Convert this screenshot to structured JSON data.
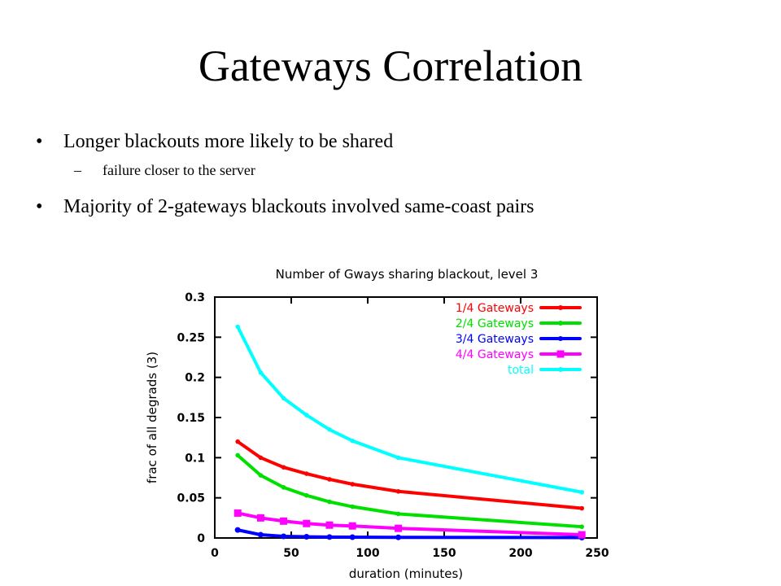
{
  "slide": {
    "title": "Gateways Correlation",
    "bullets": [
      {
        "text": "Longer blackouts more likely to be shared",
        "subbullets": [
          "failure closer to the server"
        ]
      },
      {
        "text": "Majority of 2-gateways blackouts involved same-coast pairs",
        "subbullets": []
      }
    ]
  },
  "chart_data": {
    "type": "line",
    "title": "Number of Gways sharing blackout, level 3",
    "xlabel": "duration (minutes)",
    "ylabel": "frac of all degrads (3)",
    "xlim": [
      0,
      250
    ],
    "ylim": [
      0,
      0.3
    ],
    "xticks": [
      "0",
      "50",
      "100",
      "150",
      "200",
      "250"
    ],
    "yticks": [
      "0",
      "0.05",
      "0.1",
      "0.15",
      "0.2",
      "0.25",
      "0.3"
    ],
    "grid": false,
    "legend_position": "top-right",
    "x": [
      15,
      30,
      45,
      60,
      75,
      90,
      120,
      240
    ],
    "series": [
      {
        "name": "1/4 Gateways",
        "color": "#ff0000",
        "marker": "circle",
        "values": [
          0.12,
          0.1,
          0.088,
          0.08,
          0.073,
          0.067,
          0.058,
          0.037
        ]
      },
      {
        "name": "2/4 Gateways",
        "color": "#00e000",
        "marker": "circle",
        "values": [
          0.103,
          0.078,
          0.063,
          0.053,
          0.045,
          0.039,
          0.03,
          0.014
        ]
      },
      {
        "name": "3/4 Gateways",
        "color": "#0000ff",
        "marker": "circle",
        "values": [
          0.01,
          0.004,
          0.002,
          0.0015,
          0.0012,
          0.001,
          0.0008,
          0.0005
        ]
      },
      {
        "name": "4/4 Gateways",
        "color": "#ff00ff",
        "marker": "square",
        "values": [
          0.031,
          0.025,
          0.021,
          0.018,
          0.016,
          0.015,
          0.012,
          0.004
        ]
      },
      {
        "name": "total",
        "color": "#00ffff",
        "marker": "circle",
        "values": [
          0.263,
          0.206,
          0.174,
          0.153,
          0.135,
          0.121,
          0.1,
          0.057
        ]
      }
    ]
  }
}
